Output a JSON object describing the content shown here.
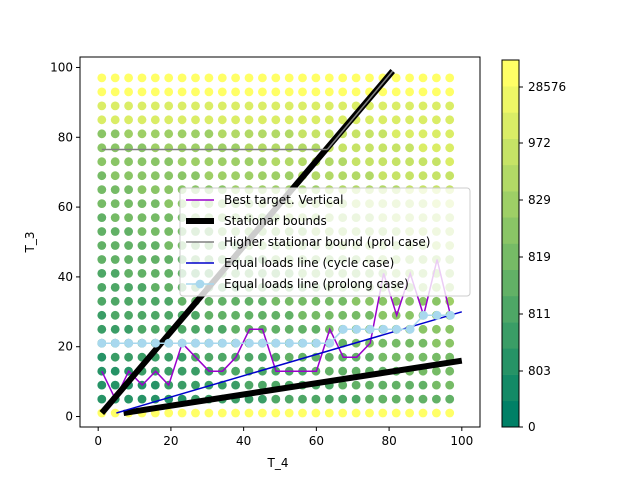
{
  "chart_data": {
    "type": "scatter",
    "xlabel": "T_4",
    "ylabel": "T_3",
    "xlim": [
      -5,
      105
    ],
    "ylim": [
      -3,
      103
    ],
    "x_ticks": [
      0,
      20,
      40,
      60,
      80,
      100
    ],
    "y_ticks": [
      0,
      20,
      40,
      60,
      80,
      100
    ],
    "grid": {
      "x_start": 1,
      "x_end": 97,
      "x_step": 3.68,
      "y_start": 1,
      "y_end": 97,
      "y_step": 4.0
    },
    "colorbar": {
      "tick_labels": [
        "0",
        "803",
        "811",
        "819",
        "829",
        "972",
        "28576"
      ],
      "colors": [
        "#008066",
        "#138a66",
        "#269366",
        "#3a9d66",
        "#4ea766",
        "#62b166",
        "#76bb66",
        "#8ac566",
        "#9ecf66",
        "#b2d966",
        "#c6e366",
        "#daed66",
        "#eef766",
        "#ffff66"
      ]
    },
    "series": [
      {
        "name": "Best target. Vertical",
        "color": "#9900cc",
        "line_width": 1.5,
        "x": [
          1,
          4.7,
          8.4,
          12.1,
          15.8,
          19.4,
          23.1,
          26.8,
          30.5,
          34.2,
          37.9,
          41.6,
          45.2,
          48.9,
          52.6,
          56.3,
          60,
          63.7,
          67.4,
          71.1,
          74.8,
          78.5,
          82.1,
          85.8,
          89.5,
          93.2,
          96.9
        ],
        "y": [
          13,
          5,
          13,
          9,
          13,
          9,
          21,
          17,
          13,
          13,
          17,
          25,
          25,
          13,
          13,
          13,
          13,
          25,
          17,
          17,
          21,
          41,
          29,
          41,
          29,
          45,
          29
        ]
      },
      {
        "name": "Stationar bounds",
        "color": "#000000",
        "line_width": 6,
        "segments": [
          {
            "x": [
              1,
              81
            ],
            "y": [
              1,
              99
            ]
          },
          {
            "x": [
              7,
              100
            ],
            "y": [
              1,
              16
            ]
          }
        ]
      },
      {
        "name": "Higher stationar bound (prol case)",
        "color": "#808080",
        "line_width": 1.5,
        "segments": [
          {
            "x": [
              1,
              63
            ],
            "y": [
              76.5,
              76.5
            ]
          },
          {
            "x": [
              63,
              81
            ],
            "y": [
              76.5,
              99
            ]
          }
        ]
      },
      {
        "name": "Equal loads line (cycle case)",
        "color": "#0000cc",
        "line_width": 1.5,
        "x": [
          5,
          100
        ],
        "y": [
          1,
          30
        ]
      },
      {
        "name": "Equal loads line (prolong case)",
        "color": "#a8d8ee",
        "line_width": 1.5,
        "marker": "o",
        "x": [
          1,
          4.7,
          8.4,
          12.1,
          15.8,
          19.4,
          23.1,
          26.8,
          30.5,
          34.2,
          37.9,
          41.6,
          45.2,
          48.9,
          52.6,
          56.3,
          60,
          63.7,
          67.4,
          71.1,
          74.8,
          78.5,
          82.1,
          85.8,
          89.5,
          93.2,
          96.9
        ],
        "y": [
          21,
          21,
          21,
          21,
          21,
          21,
          21,
          21,
          21,
          21,
          21,
          21,
          21,
          21,
          21,
          21,
          21,
          21,
          25,
          25,
          25,
          25,
          25,
          25,
          29,
          29,
          29
        ]
      }
    ],
    "legend": {
      "placement": "center-right"
    }
  }
}
